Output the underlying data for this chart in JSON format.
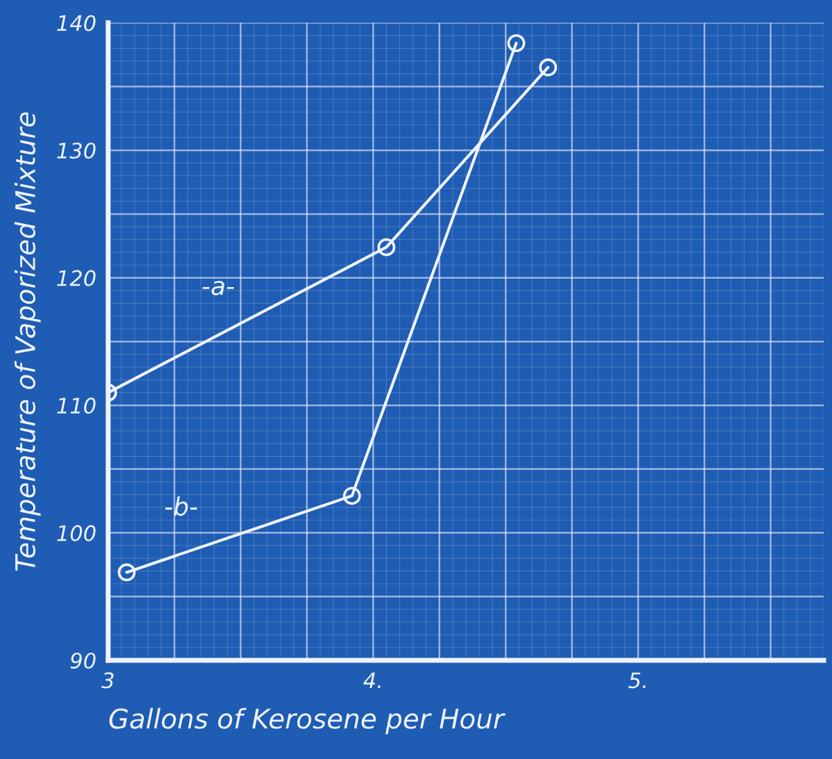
{
  "chart_data": {
    "type": "line",
    "xlabel": "Gallons of Kerosene per Hour",
    "ylabel": "Temperature of Vaporized Mixture",
    "series": [
      {
        "name": "-a-",
        "color": "#eef3ff",
        "x": [
          3.0,
          4.05,
          4.66
        ],
        "values": [
          111,
          122.4,
          136.5
        ]
      },
      {
        "name": "-b-",
        "color": "#eef3ff",
        "x": [
          3.07,
          3.92,
          4.54
        ],
        "values": [
          96.9,
          102.9,
          138.4
        ]
      }
    ],
    "xlim": [
      3,
      5.7
    ],
    "xticks": [
      3,
      {
        "value": 4,
        "label": "4."
      },
      {
        "value": 5,
        "label": "5."
      }
    ],
    "ylim": [
      90,
      140
    ],
    "yticks": [
      90,
      100,
      110,
      120,
      130,
      140
    ],
    "grid": true,
    "marker": "circle",
    "line_style": "solid"
  }
}
